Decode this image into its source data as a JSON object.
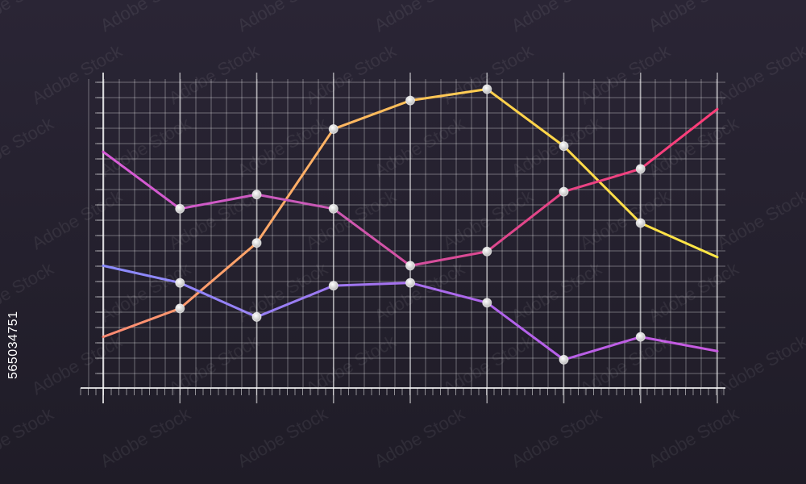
{
  "stock_id": "565034751",
  "watermark_text": "Adobe Stock",
  "colors": {
    "background_top": "#2a2535",
    "background_bottom": "#1f1c27",
    "grid": "#ffffff",
    "marker": "#d9d9d9"
  },
  "chart_data": {
    "type": "line",
    "grid": true,
    "x": [
      0,
      1,
      2,
      3,
      4,
      5,
      6,
      7,
      8
    ],
    "xlim": [
      0,
      8
    ],
    "ylim": [
      0,
      100
    ],
    "series": [
      {
        "values": [
          12,
          22,
          45,
          85,
          95,
          99,
          79,
          52,
          40
        ],
        "gradient": [
          "#ff8a73",
          "#ffb066",
          "#ffd24a",
          "#ffe845"
        ]
      },
      {
        "values": [
          77,
          57,
          62,
          57,
          37,
          42,
          63,
          71,
          92
        ],
        "gradient": [
          "#d85ad8",
          "#c95ab8",
          "#e0468a",
          "#ff3d77"
        ]
      },
      {
        "values": [
          37,
          31,
          19,
          30,
          31,
          24,
          4,
          12,
          7
        ],
        "gradient": [
          "#8b8cff",
          "#9b7cf2",
          "#b262ea",
          "#c85ae0"
        ]
      }
    ],
    "markers": [
      {
        "series": 0,
        "points": [
          1,
          2,
          3,
          4,
          5,
          6,
          7
        ]
      },
      {
        "series": 1,
        "points": [
          1,
          2,
          3,
          4,
          5,
          6,
          7
        ]
      },
      {
        "series": 2,
        "points": [
          1,
          2,
          3,
          4,
          5,
          6,
          7
        ]
      }
    ]
  }
}
